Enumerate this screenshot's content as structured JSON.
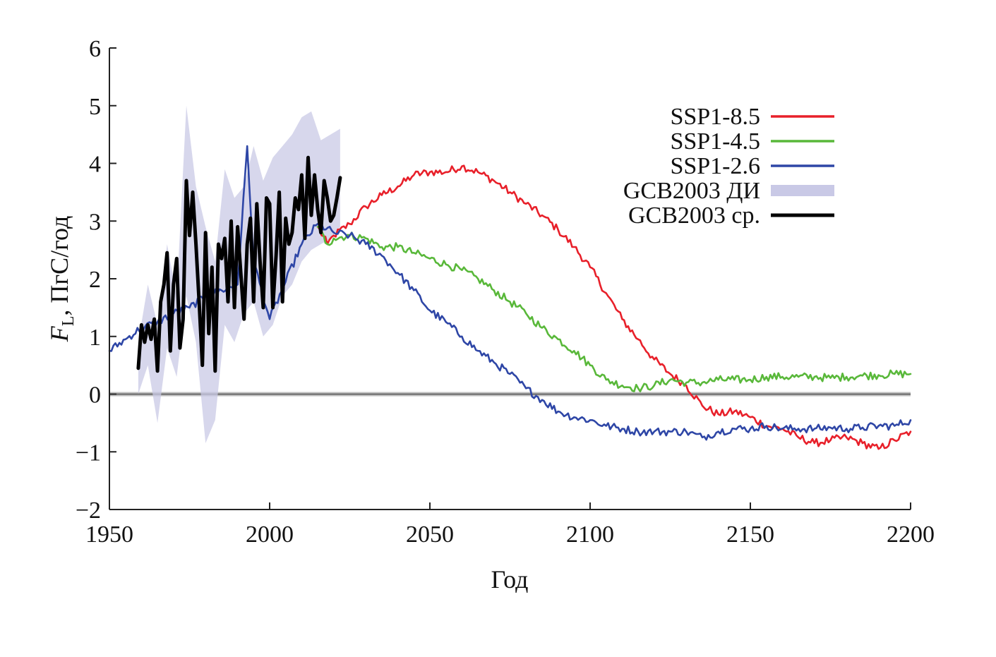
{
  "chart_data": {
    "type": "line",
    "title": "",
    "xlabel": "Год",
    "ylabel": {
      "symbol": "F",
      "subscript": "L",
      "unit": ", ПгС/год"
    },
    "xlim": [
      1950,
      2200
    ],
    "ylim": [
      -2,
      6
    ],
    "xticks": [
      {
        "value": 1950,
        "label": "1950"
      },
      {
        "value": 2000,
        "label": "2000"
      },
      {
        "value": 2050,
        "label": "2050"
      },
      {
        "value": 2100,
        "label": "2100"
      },
      {
        "value": 2150,
        "label": "2150"
      },
      {
        "value": 2200,
        "label": "2200"
      }
    ],
    "yticks": [
      {
        "value": -2,
        "label": "−2"
      },
      {
        "value": -1,
        "label": "−1"
      },
      {
        "value": 0,
        "label": "0"
      },
      {
        "value": 1,
        "label": "1"
      },
      {
        "value": 2,
        "label": "2"
      },
      {
        "value": 3,
        "label": "3"
      },
      {
        "value": 4,
        "label": "4"
      },
      {
        "value": 5,
        "label": "5"
      },
      {
        "value": 6,
        "label": "6"
      }
    ],
    "zero_line": true,
    "legend_position": "top-right",
    "series": [
      {
        "id": "ssp585",
        "name": "SSP1-8.5",
        "color": "#e8202a",
        "kind": "line",
        "points": [
          [
            2015,
            2.9
          ],
          [
            2018,
            2.6
          ],
          [
            2020,
            2.75
          ],
          [
            2025,
            2.95
          ],
          [
            2030,
            3.25
          ],
          [
            2035,
            3.45
          ],
          [
            2040,
            3.6
          ],
          [
            2045,
            3.8
          ],
          [
            2050,
            3.85
          ],
          [
            2055,
            3.85
          ],
          [
            2060,
            3.95
          ],
          [
            2065,
            3.85
          ],
          [
            2070,
            3.7
          ],
          [
            2075,
            3.5
          ],
          [
            2080,
            3.3
          ],
          [
            2085,
            3.1
          ],
          [
            2090,
            2.85
          ],
          [
            2095,
            2.55
          ],
          [
            2100,
            2.2
          ],
          [
            2105,
            1.75
          ],
          [
            2110,
            1.3
          ],
          [
            2115,
            0.95
          ],
          [
            2120,
            0.6
          ],
          [
            2125,
            0.35
          ],
          [
            2130,
            0.15
          ],
          [
            2135,
            -0.2
          ],
          [
            2140,
            -0.35
          ],
          [
            2145,
            -0.3
          ],
          [
            2150,
            -0.4
          ],
          [
            2155,
            -0.55
          ],
          [
            2160,
            -0.6
          ],
          [
            2165,
            -0.75
          ],
          [
            2170,
            -0.85
          ],
          [
            2175,
            -0.8
          ],
          [
            2180,
            -0.75
          ],
          [
            2185,
            -0.85
          ],
          [
            2190,
            -0.95
          ],
          [
            2195,
            -0.8
          ],
          [
            2200,
            -0.65
          ]
        ]
      },
      {
        "id": "ssp245",
        "name": "SSP1-4.5",
        "color": "#59b83a",
        "kind": "line",
        "points": [
          [
            2015,
            2.9
          ],
          [
            2018,
            2.6
          ],
          [
            2020,
            2.7
          ],
          [
            2025,
            2.75
          ],
          [
            2030,
            2.7
          ],
          [
            2035,
            2.55
          ],
          [
            2040,
            2.55
          ],
          [
            2045,
            2.45
          ],
          [
            2050,
            2.35
          ],
          [
            2055,
            2.25
          ],
          [
            2060,
            2.15
          ],
          [
            2065,
            2.0
          ],
          [
            2070,
            1.8
          ],
          [
            2075,
            1.6
          ],
          [
            2080,
            1.4
          ],
          [
            2085,
            1.15
          ],
          [
            2090,
            0.95
          ],
          [
            2095,
            0.75
          ],
          [
            2100,
            0.5
          ],
          [
            2105,
            0.25
          ],
          [
            2110,
            0.15
          ],
          [
            2115,
            0.1
          ],
          [
            2120,
            0.15
          ],
          [
            2125,
            0.25
          ],
          [
            2130,
            0.2
          ],
          [
            2135,
            0.2
          ],
          [
            2140,
            0.25
          ],
          [
            2145,
            0.25
          ],
          [
            2150,
            0.25
          ],
          [
            2155,
            0.3
          ],
          [
            2160,
            0.3
          ],
          [
            2165,
            0.3
          ],
          [
            2170,
            0.3
          ],
          [
            2175,
            0.28
          ],
          [
            2180,
            0.3
          ],
          [
            2185,
            0.32
          ],
          [
            2190,
            0.33
          ],
          [
            2195,
            0.35
          ],
          [
            2200,
            0.35
          ]
        ]
      },
      {
        "id": "ssp126",
        "name": "SSP1-2.6",
        "color": "#2e46a6",
        "kind": "line",
        "points": [
          [
            1950,
            0.75
          ],
          [
            1955,
            0.95
          ],
          [
            1960,
            1.15
          ],
          [
            1965,
            1.25
          ],
          [
            1970,
            1.4
          ],
          [
            1975,
            1.5
          ],
          [
            1980,
            1.7
          ],
          [
            1985,
            1.8
          ],
          [
            1990,
            1.9
          ],
          [
            1993,
            4.3
          ],
          [
            1995,
            2.3
          ],
          [
            2000,
            1.3
          ],
          [
            2005,
            1.95
          ],
          [
            2010,
            2.6
          ],
          [
            2015,
            2.95
          ],
          [
            2020,
            2.8
          ],
          [
            2025,
            2.75
          ],
          [
            2030,
            2.6
          ],
          [
            2035,
            2.4
          ],
          [
            2040,
            2.1
          ],
          [
            2045,
            1.8
          ],
          [
            2050,
            1.45
          ],
          [
            2055,
            1.25
          ],
          [
            2060,
            1.0
          ],
          [
            2065,
            0.75
          ],
          [
            2070,
            0.55
          ],
          [
            2075,
            0.35
          ],
          [
            2080,
            0.1
          ],
          [
            2085,
            -0.1
          ],
          [
            2090,
            -0.3
          ],
          [
            2095,
            -0.4
          ],
          [
            2100,
            -0.45
          ],
          [
            2105,
            -0.55
          ],
          [
            2110,
            -0.6
          ],
          [
            2115,
            -0.65
          ],
          [
            2120,
            -0.65
          ],
          [
            2125,
            -0.65
          ],
          [
            2130,
            -0.65
          ],
          [
            2135,
            -0.75
          ],
          [
            2140,
            -0.65
          ],
          [
            2145,
            -0.6
          ],
          [
            2150,
            -0.6
          ],
          [
            2155,
            -0.55
          ],
          [
            2160,
            -0.6
          ],
          [
            2165,
            -0.6
          ],
          [
            2170,
            -0.6
          ],
          [
            2175,
            -0.58
          ],
          [
            2180,
            -0.6
          ],
          [
            2185,
            -0.58
          ],
          [
            2190,
            -0.55
          ],
          [
            2195,
            -0.55
          ],
          [
            2200,
            -0.45
          ]
        ]
      },
      {
        "id": "gcb_ci",
        "name": "GCB2003 ДИ",
        "color": "#c9c9e6",
        "kind": "band",
        "x": [
          1959,
          1962,
          1965,
          1968,
          1971,
          1974,
          1977,
          1980,
          1983,
          1986,
          1989,
          1992,
          1995,
          1998,
          2001,
          2004,
          2007,
          2010,
          2013,
          2016,
          2019,
          2022
        ],
        "lower": [
          0.0,
          0.5,
          -0.5,
          0.8,
          0.3,
          1.7,
          0.9,
          -0.85,
          -0.45,
          1.2,
          0.9,
          1.4,
          1.6,
          1.0,
          1.2,
          1.7,
          1.9,
          2.3,
          2.5,
          2.6,
          2.7,
          2.9
        ],
        "upper": [
          0.9,
          1.9,
          1.2,
          2.6,
          1.7,
          5.0,
          3.6,
          2.9,
          2.3,
          3.9,
          3.4,
          3.6,
          4.3,
          3.7,
          4.1,
          4.3,
          4.5,
          4.8,
          4.9,
          4.4,
          4.5,
          4.6
        ]
      },
      {
        "id": "gcb_mean",
        "name": "GCB2003 ср.",
        "color": "#000000",
        "kind": "line",
        "points": [
          [
            1959,
            0.45
          ],
          [
            1960,
            1.2
          ],
          [
            1961,
            0.9
          ],
          [
            1962,
            1.2
          ],
          [
            1963,
            0.95
          ],
          [
            1964,
            1.3
          ],
          [
            1965,
            0.4
          ],
          [
            1966,
            1.6
          ],
          [
            1967,
            1.9
          ],
          [
            1968,
            2.45
          ],
          [
            1969,
            0.75
          ],
          [
            1970,
            1.9
          ],
          [
            1971,
            2.35
          ],
          [
            1972,
            0.8
          ],
          [
            1973,
            1.3
          ],
          [
            1974,
            3.7
          ],
          [
            1975,
            2.75
          ],
          [
            1976,
            3.5
          ],
          [
            1977,
            2.6
          ],
          [
            1978,
            1.6
          ],
          [
            1979,
            0.5
          ],
          [
            1980,
            2.8
          ],
          [
            1981,
            1.05
          ],
          [
            1982,
            2.2
          ],
          [
            1983,
            0.4
          ],
          [
            1984,
            2.6
          ],
          [
            1985,
            2.35
          ],
          [
            1986,
            2.7
          ],
          [
            1987,
            1.6
          ],
          [
            1988,
            3.0
          ],
          [
            1989,
            1.5
          ],
          [
            1990,
            2.9
          ],
          [
            1991,
            2.1
          ],
          [
            1992,
            1.3
          ],
          [
            1993,
            2.6
          ],
          [
            1994,
            3.05
          ],
          [
            1995,
            1.6
          ],
          [
            1996,
            3.3
          ],
          [
            1997,
            2.3
          ],
          [
            1998,
            1.5
          ],
          [
            1999,
            3.4
          ],
          [
            2000,
            3.3
          ],
          [
            2001,
            1.5
          ],
          [
            2002,
            2.4
          ],
          [
            2003,
            3.5
          ],
          [
            2004,
            1.6
          ],
          [
            2005,
            3.05
          ],
          [
            2006,
            2.6
          ],
          [
            2007,
            2.8
          ],
          [
            2008,
            3.4
          ],
          [
            2009,
            3.2
          ],
          [
            2010,
            3.8
          ],
          [
            2011,
            2.7
          ],
          [
            2012,
            4.1
          ],
          [
            2013,
            3.1
          ],
          [
            2014,
            3.8
          ],
          [
            2015,
            3.2
          ],
          [
            2016,
            2.8
          ],
          [
            2017,
            3.7
          ],
          [
            2018,
            3.4
          ],
          [
            2019,
            3.0
          ],
          [
            2020,
            3.1
          ],
          [
            2021,
            3.4
          ],
          [
            2022,
            3.75
          ]
        ]
      }
    ],
    "legend": [
      {
        "label": "SSP1-8.5",
        "color": "#e8202a",
        "kind": "line"
      },
      {
        "label": "SSP1-4.5",
        "color": "#59b83a",
        "kind": "line"
      },
      {
        "label": "SSP1-2.6",
        "color": "#2e46a6",
        "kind": "line"
      },
      {
        "label": "GCB2003 ДИ",
        "color": "#c9c9e6",
        "kind": "band"
      },
      {
        "label": "GCB2003 ср.",
        "color": "#000000",
        "kind": "line"
      }
    ]
  }
}
